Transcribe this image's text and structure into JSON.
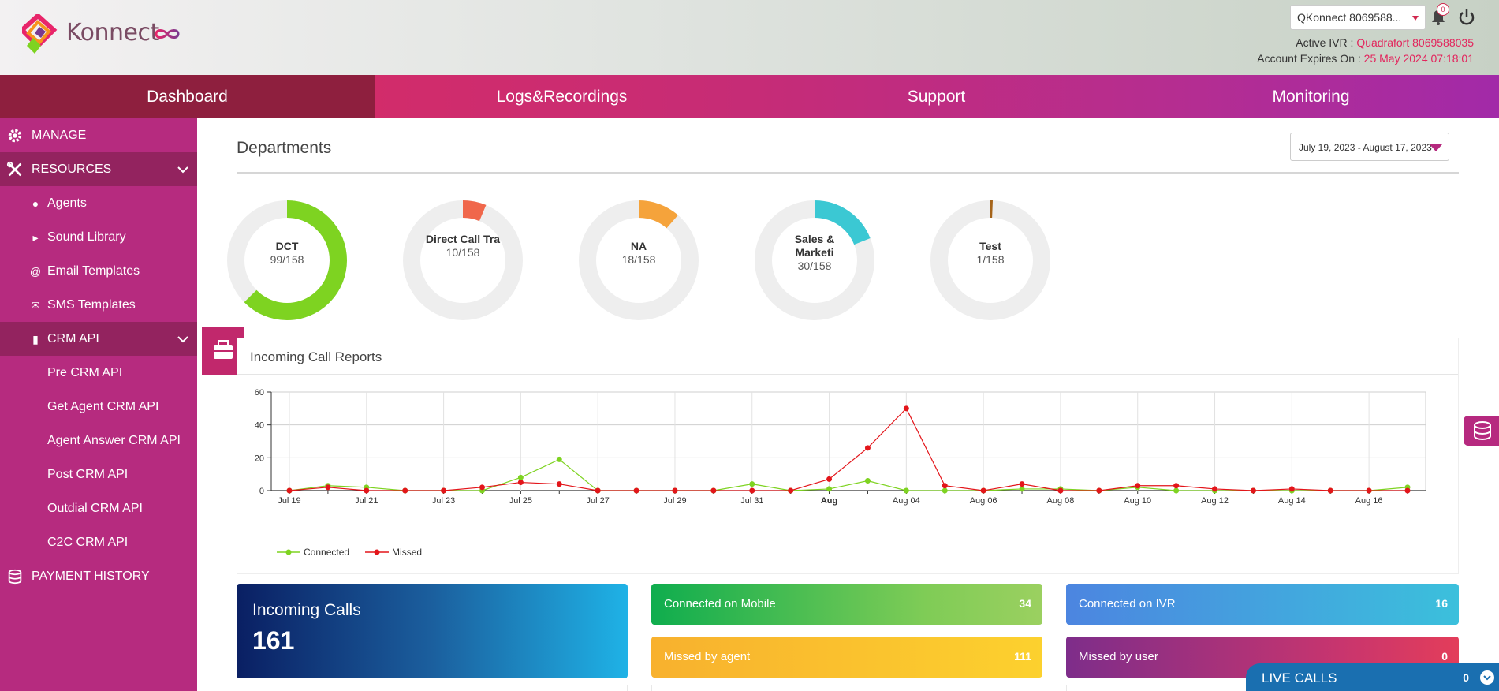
{
  "header": {
    "brand": "Konnect",
    "account_selector": "QKonnect 8069588...",
    "notification_count": "0",
    "active_ivr_label": "Active IVR :",
    "active_ivr_value": "Quadrafort 8069588035",
    "expires_label": "Account Expires On :",
    "expires_value": "25 May 2024 07:18:01"
  },
  "nav": [
    {
      "label": "Dashboard",
      "active": true
    },
    {
      "label": "Logs&Recordings"
    },
    {
      "label": "Support"
    },
    {
      "label": "Monitoring"
    }
  ],
  "sidebar": {
    "manage": "MANAGE",
    "resources": "RESOURCES",
    "agents": "Agents",
    "sound_library": "Sound Library",
    "email_templates": "Email Templates",
    "sms_templates": "SMS Templates",
    "crm_api": "CRM API",
    "crm_items": [
      "Pre CRM API",
      "Get Agent CRM API",
      "Agent Answer CRM API",
      "Post CRM API",
      "Outdial CRM API",
      "C2C CRM API"
    ],
    "payment_history": "PAYMENT HISTORY"
  },
  "departments": {
    "title": "Departments",
    "date_range": "July 19, 2023 - August 17, 2023",
    "items": [
      {
        "name": "DCT",
        "count": "99/158",
        "value": 99,
        "total": 158,
        "color": "#7ed321"
      },
      {
        "name": "Direct Call Tra",
        "count": "10/158",
        "value": 10,
        "total": 158,
        "color": "#f0674b"
      },
      {
        "name": "NA",
        "count": "18/158",
        "value": 18,
        "total": 158,
        "color": "#f5a33b"
      },
      {
        "name": "Sales & Marketi",
        "count": "30/158",
        "value": 30,
        "total": 158,
        "color": "#3bc8d3"
      },
      {
        "name": "Test",
        "count": "1/158",
        "value": 1,
        "total": 158,
        "color": "#a5641a"
      }
    ]
  },
  "report": {
    "title": "Incoming Call Reports"
  },
  "chart_data": {
    "type": "line",
    "x": [
      "Jul 19",
      "Jul 20",
      "Jul 21",
      "Jul 22",
      "Jul 23",
      "Jul 24",
      "Jul 25",
      "Jul 26",
      "Jul 27",
      "Jul 28",
      "Jul 29",
      "Jul 30",
      "Jul 31",
      "Aug 01",
      "Aug 02",
      "Aug 03",
      "Aug 04",
      "Aug 05",
      "Aug 06",
      "Aug 07",
      "Aug 08",
      "Aug 09",
      "Aug 10",
      "Aug 11",
      "Aug 12",
      "Aug 13",
      "Aug 14",
      "Aug 15",
      "Aug 16",
      "Aug 17"
    ],
    "x_tick_labels": [
      "Jul 19",
      "Jul 21",
      "Jul 23",
      "Jul 25",
      "Jul 27",
      "Jul 29",
      "Jul 31",
      "Aug",
      "Aug 04",
      "Aug 06",
      "Aug 08",
      "Aug 10",
      "Aug 12",
      "Aug 14",
      "Aug 16"
    ],
    "y_ticks": [
      0,
      20,
      40,
      60
    ],
    "ylim": [
      0,
      60
    ],
    "grid": true,
    "legend": "bottom-left",
    "series": [
      {
        "name": "Connected",
        "color": "#7ed321",
        "values": [
          0,
          3,
          2,
          0,
          0,
          0,
          8,
          19,
          0,
          0,
          0,
          0,
          4,
          0,
          1,
          6,
          0,
          0,
          0,
          1,
          1,
          0,
          2,
          0,
          0,
          0,
          0,
          0,
          0,
          2
        ]
      },
      {
        "name": "Missed",
        "color": "#e3151a",
        "values": [
          0,
          2,
          0,
          0,
          0,
          2,
          5,
          4,
          0,
          0,
          0,
          0,
          0,
          0,
          7,
          26,
          50,
          3,
          0,
          4,
          0,
          0,
          3,
          3,
          1,
          0,
          1,
          0,
          0,
          0
        ]
      }
    ]
  },
  "stats": {
    "incoming_label": "Incoming Calls",
    "incoming_value": "161",
    "connected_mobile_label": "Connected on Mobile",
    "connected_mobile_value": "34",
    "connected_ivr_label": "Connected on IVR",
    "connected_ivr_value": "16",
    "missed_agent_label": "Missed by agent",
    "missed_agent_value": "111",
    "missed_user_label": "Missed by user",
    "missed_user_value": "0"
  },
  "live_calls": {
    "label": "LIVE CALLS",
    "value": "0"
  }
}
